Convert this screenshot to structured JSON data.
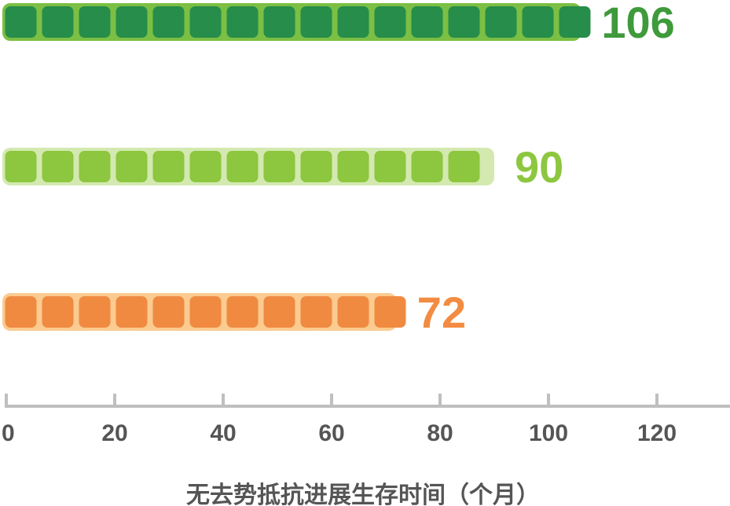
{
  "chart_data": {
    "type": "bar",
    "orientation": "horizontal",
    "style": "pictograph-segments",
    "xlabel": "无去势抵抗进展生存时间（个月）",
    "xlim": [
      0,
      133
    ],
    "ticks": [
      0,
      20,
      40,
      60,
      80,
      100,
      120
    ],
    "tick_labels": [
      "0",
      "20",
      "40",
      "60",
      "80",
      "100",
      "120"
    ],
    "series": [
      {
        "value": 106,
        "label": "106",
        "fill": "#268d4a",
        "border": "#7bbf44",
        "label_color": "#3f9a3c"
      },
      {
        "value": 90,
        "label": "90",
        "fill": "#8dc63f",
        "border": "#d3e9b0",
        "label_color": "#8dc63f"
      },
      {
        "value": 72,
        "label": "72",
        "fill": "#f08a41",
        "border": "#fbcb90",
        "label_color": "#f28c42"
      }
    ],
    "axis_color": "#bfbfbf",
    "text_color": "#555555"
  }
}
